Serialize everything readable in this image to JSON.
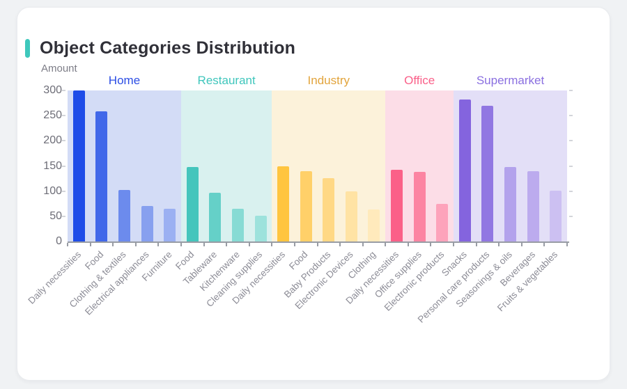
{
  "title": "Object Categories Distribution",
  "card": {
    "background": "#ffffff",
    "accent_color": "#3ec8bc"
  },
  "chart_data": {
    "type": "bar",
    "title": "Object Categories Distribution",
    "xlabel": "",
    "ylabel": "Amount",
    "ylim": [
      0,
      300
    ],
    "yticks": [
      0,
      50,
      100,
      150,
      200,
      250,
      300
    ],
    "grid": false,
    "legend_position": "group labels above colored bands",
    "groups": [
      {
        "name": "Home",
        "label_color": "#2b4de4",
        "band_color": "#d3dcf6",
        "bars": [
          {
            "label": "Daily necessities",
            "value": 300,
            "color": "#1e4ce8"
          },
          {
            "label": "Food",
            "value": 258,
            "color": "#4168e9"
          },
          {
            "label": "Clothing & textiles",
            "value": 103,
            "color": "#6c8bed"
          },
          {
            "label": "Electrical appliances",
            "value": 70,
            "color": "#87a0ef"
          },
          {
            "label": "Furniture",
            "value": 65,
            "color": "#9bb0f2"
          }
        ]
      },
      {
        "name": "Restaurant",
        "label_color": "#3fc6bc",
        "band_color": "#d9f1ef",
        "bars": [
          {
            "label": "Food",
            "value": 148,
            "color": "#45c5bc"
          },
          {
            "label": "Tableware",
            "value": 97,
            "color": "#65d0c8"
          },
          {
            "label": "Kitchenware",
            "value": 65,
            "color": "#87dbd4"
          },
          {
            "label": "Cleaning supplies",
            "value": 51,
            "color": "#9de2dc"
          }
        ]
      },
      {
        "name": "Industry",
        "label_color": "#e2a43c",
        "band_color": "#fcf2da",
        "bars": [
          {
            "label": "Daily necessities",
            "value": 150,
            "color": "#ffc53f"
          },
          {
            "label": "Food",
            "value": 139,
            "color": "#ffd069"
          },
          {
            "label": "Baby Products",
            "value": 126,
            "color": "#ffd885"
          },
          {
            "label": "Electronic Devices",
            "value": 100,
            "color": "#ffe3a4"
          },
          {
            "label": "Clothing",
            "value": 63,
            "color": "#ffeabc"
          }
        ]
      },
      {
        "name": "Office",
        "label_color": "#fa6089",
        "band_color": "#fcdde7",
        "bars": [
          {
            "label": "Daily necessities",
            "value": 142,
            "color": "#fb6088"
          },
          {
            "label": "Office supplies",
            "value": 138,
            "color": "#fc84a2"
          },
          {
            "label": "Electronic products",
            "value": 74,
            "color": "#fda3bb"
          }
        ]
      },
      {
        "name": "Supermarket",
        "label_color": "#8a6fe0",
        "band_color": "#e3dff7",
        "bars": [
          {
            "label": "Snacks",
            "value": 282,
            "color": "#8464de"
          },
          {
            "label": "Personal care products",
            "value": 269,
            "color": "#9177e2"
          },
          {
            "label": "Seasonings & oils",
            "value": 148,
            "color": "#b3a2ec"
          },
          {
            "label": "Beverages",
            "value": 140,
            "color": "#bcabee"
          },
          {
            "label": "Fruits & vegetables",
            "value": 101,
            "color": "#ccc0f2"
          }
        ]
      }
    ]
  }
}
